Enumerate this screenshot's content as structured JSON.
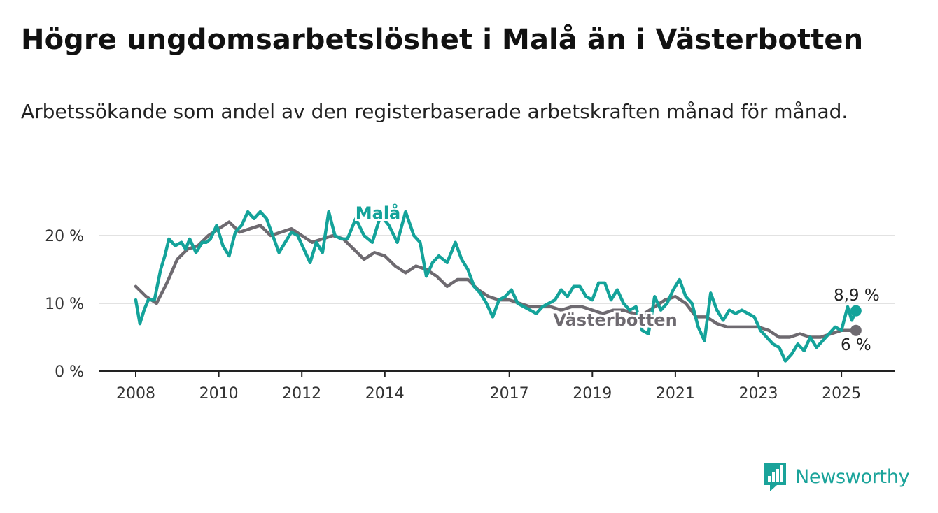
{
  "title": "Högre ungdomsarbetslöshet i Malå än i Västerbotten",
  "subtitle": "Arbetssökande som andel av den registerbaserade arbetskraften månad för månad.",
  "logo": {
    "text": "Newsworthy",
    "icon": "newsworthy-logo-icon"
  },
  "colors": {
    "mala": "#14a39a",
    "vasterbotten": "#6e6a70",
    "grid": "#d9d9d9",
    "axis": "#222222",
    "brand": "#1aa39a"
  },
  "chart_data": {
    "type": "line",
    "title": "Högre ungdomsarbetslöshet i Malå än i Västerbotten",
    "subtitle": "Arbetssökande som andel av den registerbaserade arbetskraften månad för månad.",
    "xlabel": "",
    "ylabel": "",
    "xlim": [
      2008,
      2026.2
    ],
    "ylim": [
      0,
      20
    ],
    "y_ticks": [
      0,
      10,
      20
    ],
    "y_tick_labels": [
      "0 %",
      "10 %",
      "20 %"
    ],
    "x_ticks": [
      2008,
      2010,
      2012,
      2014,
      2017,
      2019,
      2021,
      2023,
      2025
    ],
    "x_tick_labels": [
      "2008",
      "2010",
      "2012",
      "2014",
      "2017",
      "2019",
      "2021",
      "2023",
      "2025"
    ],
    "grid": true,
    "legend": "none (direct labels on lines)",
    "series": [
      {
        "name": "Malå",
        "color": "#14a39a",
        "end_label": "8,9 %",
        "x": [
          2008.0,
          2008.1,
          2008.2,
          2008.3,
          2008.45,
          2008.6,
          2008.7,
          2008.8,
          2008.95,
          2009.1,
          2009.2,
          2009.3,
          2009.45,
          2009.6,
          2009.7,
          2009.8,
          2009.95,
          2010.1,
          2010.25,
          2010.4,
          2010.55,
          2010.7,
          2010.85,
          2011.0,
          2011.15,
          2011.3,
          2011.45,
          2011.6,
          2011.75,
          2011.9,
          2012.05,
          2012.2,
          2012.35,
          2012.5,
          2012.65,
          2012.8,
          2012.95,
          2013.1,
          2013.3,
          2013.5,
          2013.7,
          2013.9,
          2014.1,
          2014.3,
          2014.5,
          2014.7,
          2014.85,
          2015.0,
          2015.15,
          2015.3,
          2015.5,
          2015.7,
          2015.85,
          2016.0,
          2016.15,
          2016.3,
          2016.45,
          2016.6,
          2016.75,
          2016.9,
          2017.05,
          2017.2,
          2017.35,
          2017.5,
          2017.65,
          2017.8,
          2017.95,
          2018.1,
          2018.25,
          2018.4,
          2018.55,
          2018.7,
          2018.85,
          2019.0,
          2019.15,
          2019.3,
          2019.45,
          2019.6,
          2019.75,
          2019.9,
          2020.05,
          2020.2,
          2020.35,
          2020.5,
          2020.65,
          2020.8,
          2020.95,
          2021.1,
          2021.25,
          2021.4,
          2021.55,
          2021.7,
          2021.85,
          2022.0,
          2022.15,
          2022.3,
          2022.45,
          2022.6,
          2022.75,
          2022.9,
          2023.05,
          2023.2,
          2023.35,
          2023.5,
          2023.65,
          2023.8,
          2023.95,
          2024.1,
          2024.25,
          2024.4,
          2024.55,
          2024.7,
          2024.85,
          2025.0,
          2025.15,
          2025.25,
          2025.35
        ],
        "values": [
          10.5,
          7.0,
          9.0,
          10.5,
          10.5,
          15.0,
          17.0,
          19.5,
          18.5,
          19.0,
          18.0,
          19.5,
          17.5,
          19.0,
          19.0,
          19.5,
          21.5,
          18.5,
          17.0,
          20.5,
          21.5,
          23.5,
          22.5,
          23.5,
          22.5,
          20.0,
          17.5,
          19.0,
          20.5,
          20.0,
          18.0,
          16.0,
          19.0,
          17.5,
          23.5,
          20.0,
          19.5,
          19.5,
          22.5,
          20.0,
          19.0,
          23.0,
          21.5,
          19.0,
          23.5,
          20.0,
          19.0,
          14.0,
          16.0,
          17.0,
          16.0,
          19.0,
          16.5,
          15.0,
          12.5,
          11.5,
          10.0,
          8.0,
          10.5,
          11.0,
          12.0,
          10.0,
          9.5,
          9.0,
          8.5,
          9.5,
          10.0,
          10.5,
          12.0,
          11.0,
          12.5,
          12.5,
          11.0,
          10.5,
          13.0,
          13.0,
          10.5,
          12.0,
          10.0,
          9.0,
          9.5,
          6.0,
          5.5,
          11.0,
          9.0,
          10.0,
          12.0,
          13.5,
          11.0,
          10.0,
          6.5,
          4.5,
          11.5,
          9.0,
          7.5,
          9.0,
          8.5,
          9.0,
          8.5,
          8.0,
          6.0,
          5.0,
          4.0,
          3.5,
          1.5,
          2.5,
          4.0,
          3.0,
          5.0,
          3.5,
          4.5,
          5.5,
          6.5,
          6.0,
          9.5,
          7.5,
          8.9
        ]
      },
      {
        "name": "Västerbotten",
        "color": "#6e6a70",
        "end_label": "6 %",
        "x": [
          2008.0,
          2008.25,
          2008.5,
          2008.75,
          2009.0,
          2009.25,
          2009.5,
          2009.75,
          2010.0,
          2010.25,
          2010.5,
          2010.75,
          2011.0,
          2011.25,
          2011.5,
          2011.75,
          2012.0,
          2012.25,
          2012.5,
          2012.75,
          2013.0,
          2013.25,
          2013.5,
          2013.75,
          2014.0,
          2014.25,
          2014.5,
          2014.75,
          2015.0,
          2015.25,
          2015.5,
          2015.75,
          2016.0,
          2016.25,
          2016.5,
          2016.75,
          2017.0,
          2017.25,
          2017.5,
          2017.75,
          2018.0,
          2018.25,
          2018.5,
          2018.75,
          2019.0,
          2019.25,
          2019.5,
          2019.75,
          2020.0,
          2020.25,
          2020.5,
          2020.75,
          2021.0,
          2021.25,
          2021.5,
          2021.75,
          2022.0,
          2022.25,
          2022.5,
          2022.75,
          2023.0,
          2023.25,
          2023.5,
          2023.75,
          2024.0,
          2024.25,
          2024.5,
          2024.75,
          2025.0,
          2025.35
        ],
        "values": [
          12.5,
          11.0,
          10.0,
          13.0,
          16.5,
          18.0,
          18.5,
          20.0,
          21.0,
          22.0,
          20.5,
          21.0,
          21.5,
          20.0,
          20.5,
          21.0,
          20.0,
          19.0,
          19.5,
          20.0,
          19.5,
          18.0,
          16.5,
          17.5,
          17.0,
          15.5,
          14.5,
          15.5,
          15.0,
          14.0,
          12.5,
          13.5,
          13.5,
          12.0,
          11.0,
          10.5,
          10.5,
          10.0,
          9.5,
          9.5,
          9.5,
          9.0,
          9.5,
          9.5,
          9.0,
          8.5,
          9.0,
          9.0,
          8.5,
          8.5,
          9.5,
          10.5,
          11.0,
          10.0,
          8.0,
          8.0,
          7.0,
          6.5,
          6.5,
          6.5,
          6.5,
          6.0,
          5.0,
          5.0,
          5.5,
          5.0,
          5.0,
          5.5,
          6.0,
          6.0
        ]
      }
    ]
  }
}
